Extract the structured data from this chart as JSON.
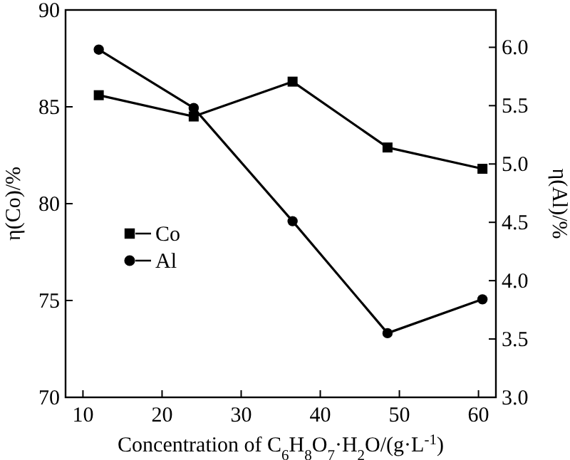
{
  "chart_data": {
    "type": "line",
    "xlabel": "Concentration of C$_{6}$H$_{8}$O$_{7}$·H$_{2}$O/(g·L$^{-1}$)",
    "ylabel": "η(Co)/%",
    "y2label": "η(Al)/%",
    "xlim": [
      7.8,
      62.2
    ],
    "xticks": [
      10,
      20,
      30,
      40,
      50,
      60
    ],
    "ylim": [
      70,
      90
    ],
    "yticks": [
      70,
      75,
      80,
      85,
      90
    ],
    "y2lim": [
      3.0,
      6.32
    ],
    "y2ticks": [
      {
        "value": 3.0,
        "label": "3.0"
      },
      {
        "value": 3.5,
        "label": "3.5"
      },
      {
        "value": 4.0,
        "label": "4.0"
      },
      {
        "value": 4.5,
        "label": "4.5"
      },
      {
        "value": 5.0,
        "label": "5.0"
      },
      {
        "value": 5.5,
        "label": "5.5"
      },
      {
        "value": 6.0,
        "label": "6.0"
      }
    ],
    "x": [
      12,
      24,
      36.5,
      48.5,
      60.5
    ],
    "legend": "bottom left",
    "line_style": "solid",
    "series": [
      {
        "name": "Co",
        "color": "#000000",
        "marker": "square",
        "values": [
          85.6,
          84.5,
          86.3,
          82.9,
          81.8
        ]
      },
      {
        "name": "Al",
        "color": "#000000",
        "marker": "circle",
        "axis": "y2",
        "values": [
          5.98,
          5.48,
          4.51,
          3.55,
          3.84
        ]
      }
    ]
  }
}
